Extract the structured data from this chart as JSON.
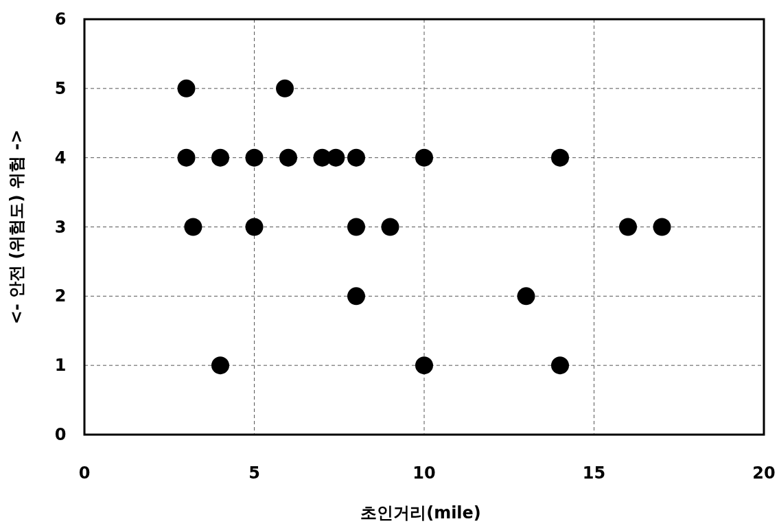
{
  "chart_data": {
    "type": "scatter",
    "xlabel": "초인거리(mile)",
    "ylabel": "<- 안전 (위험도) 위험 ->",
    "x": [
      3,
      5.9,
      3,
      4,
      5,
      6,
      7,
      7.4,
      8,
      10,
      14,
      3.2,
      5,
      8,
      9,
      16,
      17,
      8,
      13,
      4,
      10,
      14
    ],
    "values": [
      5,
      5,
      4,
      4,
      4,
      4,
      4,
      4,
      4,
      4,
      4,
      3,
      3,
      3,
      3,
      3,
      3,
      2,
      2,
      1,
      1,
      1
    ],
    "color": "#000000",
    "marker": "circle",
    "xlim": [
      0,
      20
    ],
    "ylim": [
      0,
      6
    ],
    "xticks": [
      0,
      5,
      10,
      15,
      20
    ],
    "yticks": [
      0,
      1,
      2,
      3,
      4,
      5,
      6
    ],
    "grid": true
  }
}
